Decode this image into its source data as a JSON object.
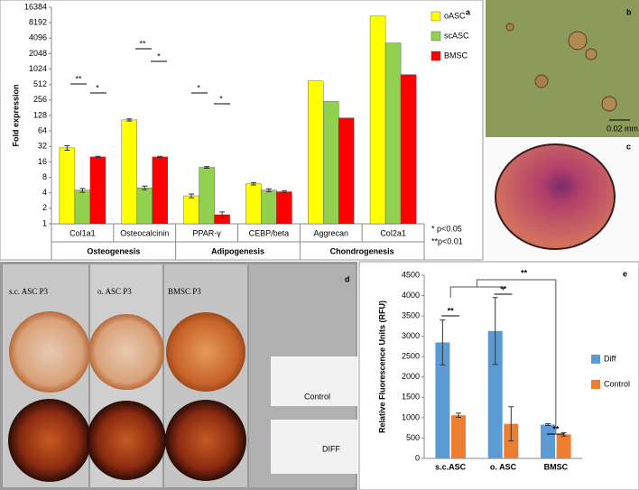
{
  "chart_data": [
    {
      "type": "bar",
      "label": "a",
      "ylabel": "Fold expression",
      "yscale": "log2",
      "ylim": [
        1,
        16384
      ],
      "yticks": [
        1,
        2,
        4,
        8,
        16,
        32,
        64,
        128,
        256,
        512,
        1024,
        2048,
        4096,
        8192,
        16384
      ],
      "categories": [
        "Col1a1",
        "Osteocalcinin",
        "PPAR-γ",
        "CEBP/beta",
        "Aggrecan",
        "Col2a1"
      ],
      "groups": [
        "Osteogenesis",
        "Adipogenesis",
        "Chondrogenesis"
      ],
      "series": [
        {
          "name": "oASC",
          "color": "#ffff00",
          "values": [
            30,
            105,
            3.5,
            6,
            600,
            11000
          ],
          "errors": [
            3,
            5,
            0.3,
            0.3,
            null,
            null
          ]
        },
        {
          "name": "scASC",
          "color": "#92d050",
          "values": [
            4.5,
            5,
            12.5,
            4.5,
            240,
            3300
          ],
          "errors": [
            0.4,
            0.4,
            0.5,
            0.3,
            null,
            null
          ]
        },
        {
          "name": "BMSC",
          "color": "#ff0000",
          "values": [
            20,
            20,
            1.5,
            4.2,
            115,
            800
          ],
          "errors": [
            0.5,
            0.5,
            0.2,
            0.2,
            null,
            null
          ]
        }
      ],
      "annotations": [
        "**",
        "*",
        "**",
        "*",
        "*",
        "*"
      ],
      "notes": [
        "*  p<0.05",
        "**p<0.01"
      ],
      "legend": "upper right"
    },
    {
      "type": "bar",
      "label": "e",
      "ylabel": "Relative Fluorescence Units (RFU)",
      "ylim": [
        0,
        4500
      ],
      "yticks": [
        0,
        500,
        1000,
        1500,
        2000,
        2500,
        3000,
        3500,
        4000,
        4500
      ],
      "categories": [
        "s.c.ASC",
        "o. ASC",
        "BMSC"
      ],
      "series": [
        {
          "name": "Diff",
          "color": "#5b9bd5",
          "values": [
            2850,
            3130,
            830
          ],
          "errors": [
            550,
            820,
            20
          ]
        },
        {
          "name": "Control",
          "color": "#ed7d31",
          "values": [
            1060,
            850,
            590
          ],
          "errors": [
            50,
            420,
            40
          ]
        }
      ],
      "annotations": [
        "**",
        "**",
        "**",
        "**"
      ],
      "legend": "right"
    }
  ],
  "images": {
    "b": {
      "label": "b",
      "scale": "0.02 mm"
    },
    "c": {
      "label": "c"
    },
    "d": {
      "label": "d",
      "columns": [
        "s.c. ASC P3",
        "o. ASC P3",
        "BMSC P3"
      ],
      "rows": [
        "Control",
        "DIFF"
      ]
    }
  }
}
